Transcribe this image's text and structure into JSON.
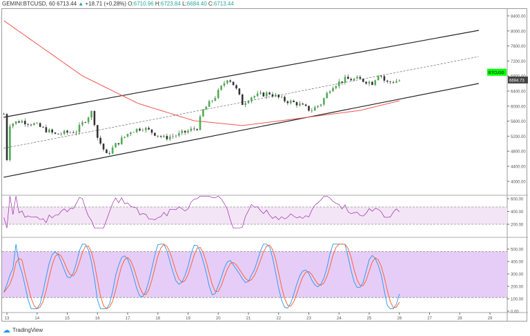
{
  "header": {
    "symbol": "GEMINI:BTCUSD, 60",
    "last": "6713.44",
    "change": "+18.71 (+0.28%)",
    "o_label": "O:",
    "o": "6710.96",
    "h_label": "H:",
    "h": "6723.84",
    "l_label": "L:",
    "l": "6684.40",
    "c_label": "C:",
    "c": "6713.44"
  },
  "footer": {
    "brand": "TradingView"
  },
  "colors": {
    "up": "#26a69a",
    "down": "#333333",
    "ma": "#ef5350",
    "rsi": "#9c27b0",
    "stochK": "#2196f3",
    "stochD": "#ff5722",
    "band": "#e1bee7"
  },
  "chart_data": {
    "type": "candlestick",
    "price_axis": {
      "ticks": [
        "8400.00",
        "8000.00",
        "7600.00",
        "7200.00",
        "6800.00",
        "6400.00",
        "6000.00",
        "5600.00",
        "5200.00",
        "4800.00",
        "4400.00",
        "4000.00"
      ],
      "range": [
        3800,
        8600
      ]
    },
    "last_price_label": "6694.73",
    "symbol_label": "BTCUSD",
    "x_ticks": [
      "13",
      "14",
      "15",
      "16",
      "17",
      "18",
      "19",
      "20",
      "21",
      "22",
      "23",
      "24",
      "25",
      "26",
      "27",
      "28",
      "29"
    ],
    "price_path": [
      [
        12.9,
        5790
      ],
      [
        12.96,
        4235
      ],
      [
        13.1,
        5520
      ],
      [
        13.45,
        5610
      ],
      [
        13.9,
        5520
      ],
      [
        14.6,
        5244
      ],
      [
        15.3,
        5336
      ],
      [
        15.85,
        5886
      ],
      [
        15.95,
        5244
      ],
      [
        16.3,
        4694
      ],
      [
        16.6,
        4969
      ],
      [
        17.1,
        5336
      ],
      [
        17.5,
        5428
      ],
      [
        18.2,
        5152
      ],
      [
        18.7,
        5244
      ],
      [
        19.3,
        5428
      ],
      [
        19.5,
        5886
      ],
      [
        19.9,
        6253
      ],
      [
        20.32,
        6767
      ],
      [
        20.55,
        6528
      ],
      [
        20.8,
        6070
      ],
      [
        21.1,
        6253
      ],
      [
        21.7,
        6345
      ],
      [
        22.15,
        6162
      ],
      [
        22.6,
        6070
      ],
      [
        23.07,
        5886
      ],
      [
        23.4,
        6070
      ],
      [
        23.75,
        6528
      ],
      [
        24.2,
        6712
      ],
      [
        24.65,
        6712
      ],
      [
        25.1,
        6620
      ],
      [
        25.33,
        6895
      ],
      [
        25.55,
        6620
      ],
      [
        26.1,
        6700
      ]
    ],
    "ma_path": [
      [
        12.9,
        8272
      ],
      [
        15.5,
        6804
      ],
      [
        17.35,
        6070
      ],
      [
        19.2,
        5611
      ],
      [
        20.8,
        5483
      ],
      [
        22.6,
        5666
      ],
      [
        24.7,
        5886
      ],
      [
        26.1,
        6162
      ]
    ],
    "channel": {
      "upper": [
        [
          12.89,
          5703
        ],
        [
          28.63,
          8015
        ]
      ],
      "middle": [
        [
          12.89,
          4877
        ],
        [
          28.63,
          7317
        ]
      ],
      "lower": [
        [
          12.89,
          4107
        ],
        [
          28.63,
          6602
        ]
      ]
    },
    "rsi": {
      "ticks": [
        "600.00",
        "400.00",
        "200.00"
      ],
      "band": [
        200,
        470
      ],
      "range": [
        0,
        700
      ]
    },
    "stoch": {
      "ticks": [
        "500.00",
        "400.00",
        "300.00",
        "200.00",
        "100.00",
        "0.00"
      ],
      "band": [
        110,
        480
      ],
      "range": [
        0,
        560
      ]
    }
  }
}
